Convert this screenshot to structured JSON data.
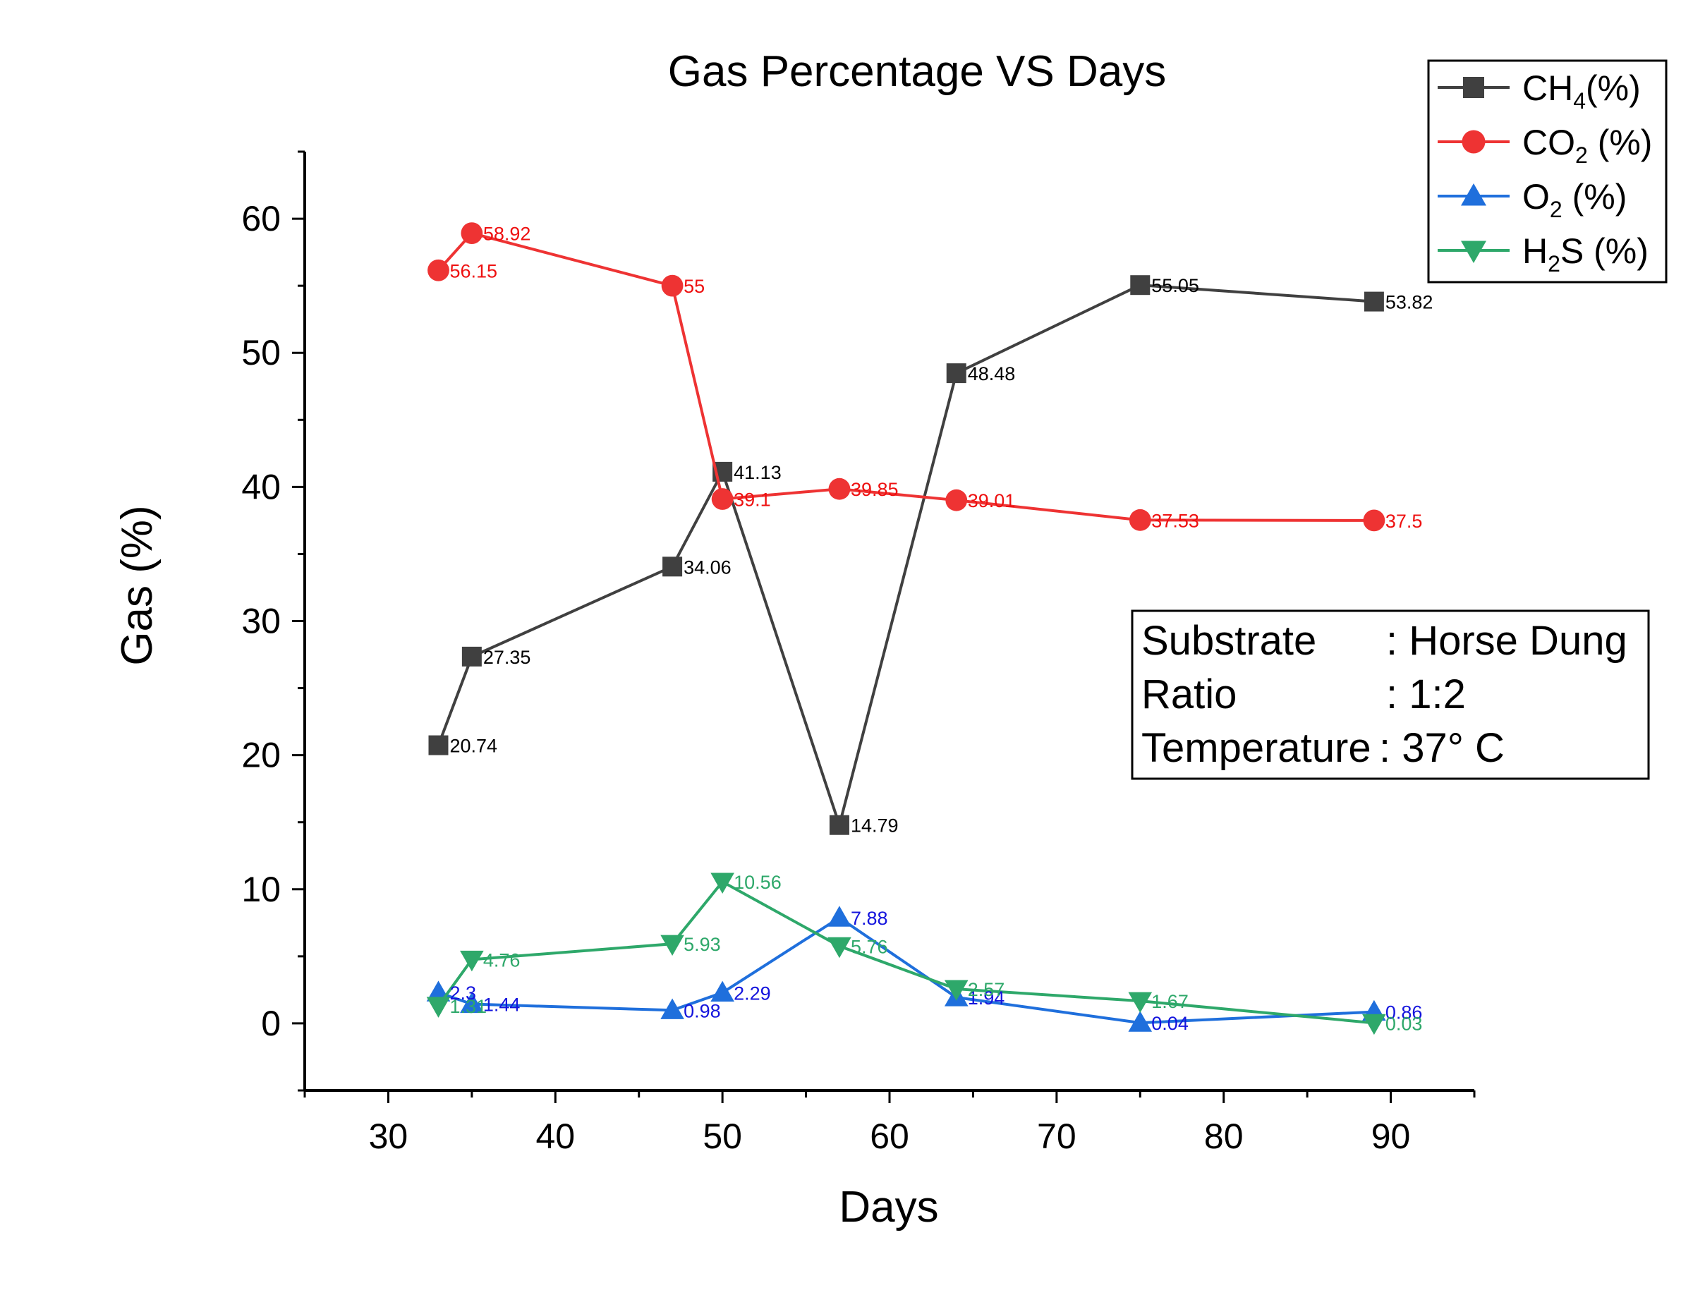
{
  "chart_data": {
    "type": "line",
    "title": "Gas Percentage VS Days",
    "xlabel": "Days",
    "ylabel": "Gas (%)",
    "xlim": [
      25,
      95
    ],
    "ylim": [
      -5,
      65
    ],
    "xticks": [
      30,
      40,
      50,
      60,
      70,
      80,
      90
    ],
    "yticks": [
      0,
      10,
      20,
      30,
      40,
      50,
      60
    ],
    "grid": false,
    "legend_position": "top-right",
    "x": [
      33,
      35,
      47,
      50,
      57,
      64,
      75,
      89
    ],
    "series": [
      {
        "name": "CH4(%)",
        "legend_main": "CH",
        "legend_sub": "4",
        "legend_tail": "(%)",
        "color": "#404040",
        "label_color": "#000000",
        "marker": "square",
        "values": [
          20.74,
          27.35,
          34.06,
          41.13,
          14.79,
          48.48,
          55.05,
          53.82
        ],
        "labels": [
          "20.74",
          "27.35",
          "34.06",
          "41.13",
          "14.79",
          "48.48",
          "55.05",
          "53.82"
        ]
      },
      {
        "name": "CO2 (%)",
        "legend_main": "CO",
        "legend_sub": "2",
        "legend_tail": " (%)",
        "color": "#ee3333",
        "label_color": "#ee1111",
        "marker": "circle",
        "values": [
          56.15,
          58.92,
          55,
          39.1,
          39.85,
          39.01,
          37.53,
          37.5
        ],
        "labels": [
          "56.15",
          "58.92",
          "55",
          "39.1",
          "39.85",
          "39.01",
          "37.53",
          "37.5"
        ]
      },
      {
        "name": "O2 (%)",
        "legend_main": "O",
        "legend_sub": "2",
        "legend_tail": " (%)",
        "color": "#1f6fdc",
        "label_color": "#1515dd",
        "marker": "triangle-up",
        "values": [
          2.3,
          1.44,
          0.98,
          2.29,
          7.88,
          1.94,
          0.04,
          0.86
        ],
        "labels": [
          "2.3",
          "1.44",
          "0.98",
          "2.29",
          "7.88",
          "1.94",
          "0.04",
          "0.86"
        ]
      },
      {
        "name": "H2S (%)",
        "legend_main": "H",
        "legend_sub": "2",
        "legend_tail": "S (%)",
        "color": "#2ea86a",
        "label_color": "#2ea86a",
        "marker": "triangle-down",
        "values": [
          1.31,
          4.76,
          5.93,
          10.56,
          5.76,
          2.57,
          1.67,
          0.03
        ],
        "labels": [
          "1.31",
          "4.76",
          "5.93",
          "10.56",
          "5.76",
          "2.57",
          "1.67",
          "0.03"
        ]
      }
    ],
    "annotation_box": {
      "rows": [
        {
          "key": "Substrate",
          "value": ": Horse Dung"
        },
        {
          "key": "Ratio",
          "value": ": 1:2"
        },
        {
          "key": "Temperature",
          "value": ": 37° C"
        }
      ]
    }
  }
}
